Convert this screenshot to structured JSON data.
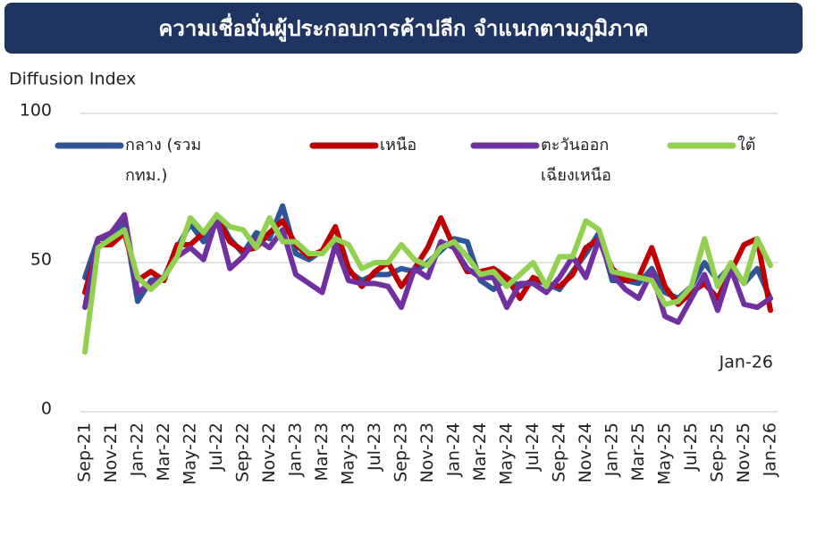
{
  "chart_data": {
    "type": "line",
    "title": "ความเชื่อมั่นผู้ประกอบการค้าปลีก จำแนกตามภูมิภาค",
    "y_label": "Diffusion Index",
    "annotation": "Jan-26",
    "categories": [
      "Sep-21",
      null,
      "Nov-21",
      null,
      "Jan-22",
      null,
      "Mar-22",
      null,
      "May-22",
      null,
      "Jul-22",
      null,
      "Sep-22",
      null,
      "Nov-22",
      null,
      "Jan-23",
      null,
      "Mar-23",
      null,
      "May-23",
      null,
      "Jul-23",
      null,
      "Sep-23",
      null,
      "Nov-23",
      null,
      "Jan-24",
      null,
      "Mar-24",
      null,
      "May-24",
      null,
      "Jul-24",
      null,
      "Sep-24",
      null,
      "Nov-24",
      null,
      "Jan-25",
      null,
      "Mar-25",
      null,
      "May-25",
      null,
      "Jul-25",
      null,
      "Sep-25",
      null,
      "Nov-25",
      null,
      "Jan-26"
    ],
    "series": [
      {
        "name": "กลาง (รวม กทม.)",
        "color": "#2e5597",
        "values": [
          45,
          58,
          58,
          64,
          37,
          44,
          45,
          55,
          63,
          57,
          66,
          58,
          53,
          60,
          58,
          69,
          53,
          51,
          54,
          58,
          47,
          44,
          46,
          46,
          48,
          47,
          50,
          54,
          58,
          57,
          44,
          41,
          45,
          42,
          44,
          43,
          41,
          47,
          53,
          60,
          44,
          44,
          43,
          48,
          40,
          38,
          42,
          50,
          44,
          49,
          43,
          48,
          38
        ]
      },
      {
        "name": "เหนือ",
        "color": "#c00000",
        "values": [
          40,
          56,
          56,
          60,
          44,
          47,
          44,
          56,
          56,
          60,
          65,
          57,
          54,
          55,
          60,
          64,
          56,
          52,
          54,
          62,
          48,
          42,
          47,
          50,
          42,
          48,
          55,
          65,
          55,
          47,
          47,
          48,
          45,
          38,
          45,
          43,
          42,
          46,
          55,
          58,
          48,
          44,
          45,
          55,
          42,
          36,
          40,
          43,
          38,
          47,
          56,
          58,
          34
        ]
      },
      {
        "name": "ตะวันออกเฉียงเหนือ",
        "color": "#7030a0",
        "values": [
          35,
          58,
          60,
          66,
          40,
          43,
          45,
          52,
          55,
          51,
          65,
          48,
          52,
          58,
          55,
          61,
          46,
          43,
          40,
          56,
          44,
          43,
          43,
          42,
          35,
          48,
          45,
          57,
          55,
          48,
          45,
          45,
          35,
          43,
          43,
          40,
          45,
          52,
          45,
          58,
          46,
          41,
          38,
          47,
          32,
          30,
          38,
          46,
          34,
          48,
          36,
          35,
          38
        ]
      },
      {
        "name": "ใต้",
        "color": "#92d050",
        "values": [
          20,
          55,
          58,
          61,
          45,
          41,
          45,
          52,
          65,
          60,
          66,
          62,
          61,
          55,
          65,
          57,
          57,
          53,
          53,
          58,
          56,
          48,
          50,
          50,
          56,
          51,
          49,
          55,
          57,
          52,
          46,
          47,
          42,
          46,
          50,
          42,
          52,
          52,
          64,
          61,
          47,
          46,
          45,
          44,
          36,
          37,
          42,
          58,
          42,
          50,
          43,
          58,
          49
        ]
      }
    ],
    "ylim": [
      0,
      100
    ],
    "yticks": [
      0,
      50,
      100
    ],
    "grid": true,
    "legend": "top"
  }
}
